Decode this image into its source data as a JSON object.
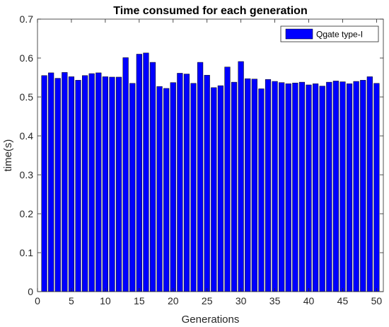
{
  "chart_data": {
    "type": "bar",
    "title": "Time consumed for each generation",
    "xlabel": "Generations",
    "ylabel": "time(s)",
    "xlim": [
      0,
      51
    ],
    "ylim": [
      0,
      0.7
    ],
    "x_ticks": [
      0,
      5,
      10,
      15,
      20,
      25,
      30,
      35,
      40,
      45,
      50
    ],
    "y_ticks": [
      0,
      0.1,
      0.2,
      0.3,
      0.4,
      0.5,
      0.6,
      0.7
    ],
    "x_tick_labels": [
      "0",
      "5",
      "10",
      "15",
      "20",
      "25",
      "30",
      "35",
      "40",
      "45",
      "50"
    ],
    "y_tick_labels": [
      "0",
      "0.1",
      "0.2",
      "0.3",
      "0.4",
      "0.5",
      "0.6",
      "0.7"
    ],
    "grid": false,
    "legend_position": "top-right",
    "categories": [
      1,
      2,
      3,
      4,
      5,
      6,
      7,
      8,
      9,
      10,
      11,
      12,
      13,
      14,
      15,
      16,
      17,
      18,
      19,
      20,
      21,
      22,
      23,
      24,
      25,
      26,
      27,
      28,
      29,
      30,
      31,
      32,
      33,
      34,
      35,
      36,
      37,
      38,
      39,
      40,
      41,
      42,
      43,
      44,
      45,
      46,
      47,
      48,
      49,
      50
    ],
    "series": [
      {
        "name": "Qgate type-I",
        "color": "#0000ff",
        "edge_color": "#000000",
        "values": [
          0.555,
          0.562,
          0.548,
          0.563,
          0.552,
          0.543,
          0.555,
          0.56,
          0.562,
          0.552,
          0.551,
          0.551,
          0.601,
          0.535,
          0.61,
          0.613,
          0.589,
          0.527,
          0.522,
          0.537,
          0.561,
          0.559,
          0.535,
          0.589,
          0.556,
          0.524,
          0.529,
          0.577,
          0.538,
          0.591,
          0.547,
          0.546,
          0.521,
          0.545,
          0.54,
          0.537,
          0.534,
          0.536,
          0.538,
          0.531,
          0.534,
          0.528,
          0.538,
          0.541,
          0.539,
          0.534,
          0.54,
          0.543,
          0.552,
          0.535
        ]
      }
    ]
  },
  "colors": {
    "bar_fill": "#0000ff",
    "bar_edge": "#000000",
    "axis": "#262626",
    "background": "#ffffff"
  }
}
